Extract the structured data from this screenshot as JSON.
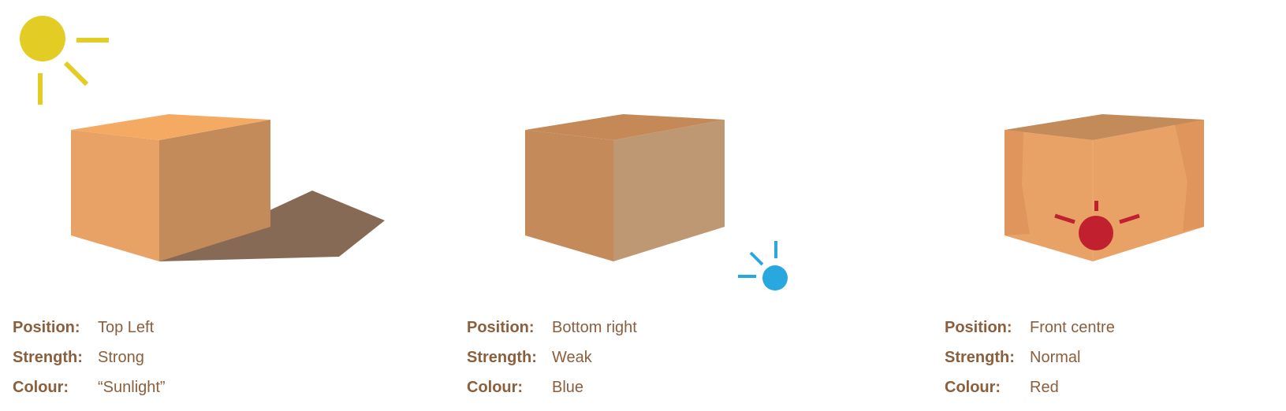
{
  "labels": {
    "position": "Position:",
    "strength": "Strength:",
    "colour": "Colour:"
  },
  "panels": [
    {
      "position": "Top Left",
      "strength": "Strong",
      "colour": "“Sunlight”",
      "light_icon": "sun-icon",
      "light_color": "#e3cd25"
    },
    {
      "position": "Bottom right",
      "strength": "Weak",
      "colour": "Blue",
      "light_icon": "light-source-icon",
      "light_color": "#29a8e0"
    },
    {
      "position": "Front centre",
      "strength": "Normal",
      "colour": "Red",
      "light_icon": "light-source-icon",
      "light_color": "#c1212e"
    }
  ],
  "colors": {
    "label_text": "#8b5e3c",
    "shadow": "#876a56"
  }
}
